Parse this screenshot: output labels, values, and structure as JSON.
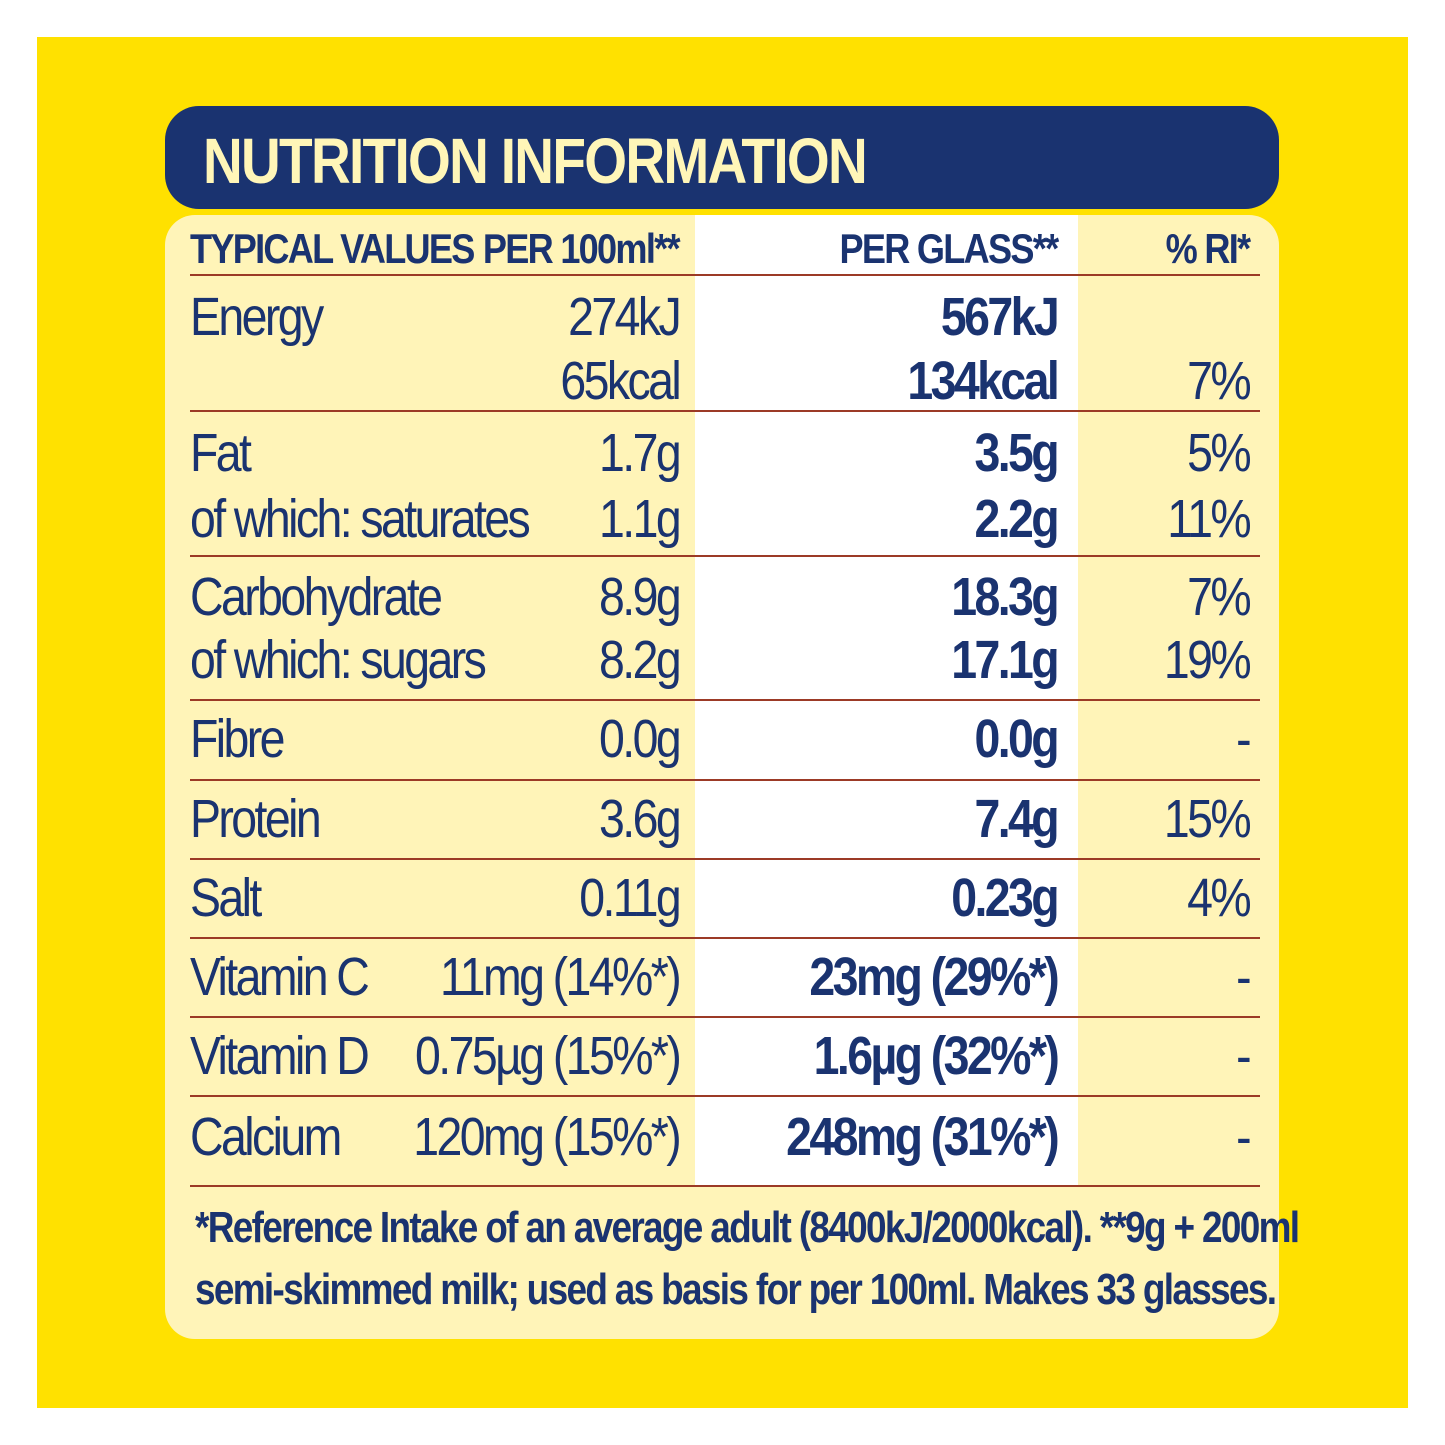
{
  "title": "NUTRITION INFORMATION",
  "headers": {
    "typical": "TYPICAL VALUES",
    "per100": "PER 100ml**",
    "perglass": "PER GLASS**",
    "ri": "% RI*"
  },
  "rows": [
    {
      "label": "Energy",
      "per100": "274kJ",
      "perglass": "567kJ",
      "ri": ""
    },
    {
      "label": "",
      "per100": "65kcal",
      "perglass": "134kcal",
      "ri": "7%"
    },
    {
      "label": "Fat",
      "per100": "1.7g",
      "perglass": "3.5g",
      "ri": "5%"
    },
    {
      "label": "of which: saturates",
      "per100": "1.1g",
      "perglass": "2.2g",
      "ri": "11%"
    },
    {
      "label": "Carbohydrate",
      "per100": "8.9g",
      "perglass": "18.3g",
      "ri": "7%"
    },
    {
      "label": "of which: sugars",
      "per100": "8.2g",
      "perglass": "17.1g",
      "ri": "19%"
    },
    {
      "label": "Fibre",
      "per100": "0.0g",
      "perglass": "0.0g",
      "ri": "-"
    },
    {
      "label": "Protein",
      "per100": "3.6g",
      "perglass": "7.4g",
      "ri": "15%"
    },
    {
      "label": "Salt",
      "per100": "0.11g",
      "perglass": "0.23g",
      "ri": "4%"
    },
    {
      "label": "Vitamin C",
      "per100": "11mg (14%*)",
      "perglass": "23mg (29%*)",
      "ri": "-"
    },
    {
      "label": "Vitamin D",
      "per100": "0.75µg (15%*)",
      "perglass": "1.6µg (32%*)",
      "ri": "-"
    },
    {
      "label": "Calcium",
      "per100": "120mg (15%*)",
      "perglass": "248mg (31%*)",
      "ri": "-"
    }
  ],
  "footnote": {
    "line1": "*Reference Intake of an average adult (8400kJ/2000kcal). **9g + 200ml",
    "line2": "semi-skimmed milk; used as basis for per 100ml. Makes 33 glasses."
  },
  "colors": {
    "background": "#ffe100",
    "navy": "#1a3370",
    "cream": "#fff4b8",
    "title_text": "#fff6b8",
    "rule": "#9c3a26"
  }
}
